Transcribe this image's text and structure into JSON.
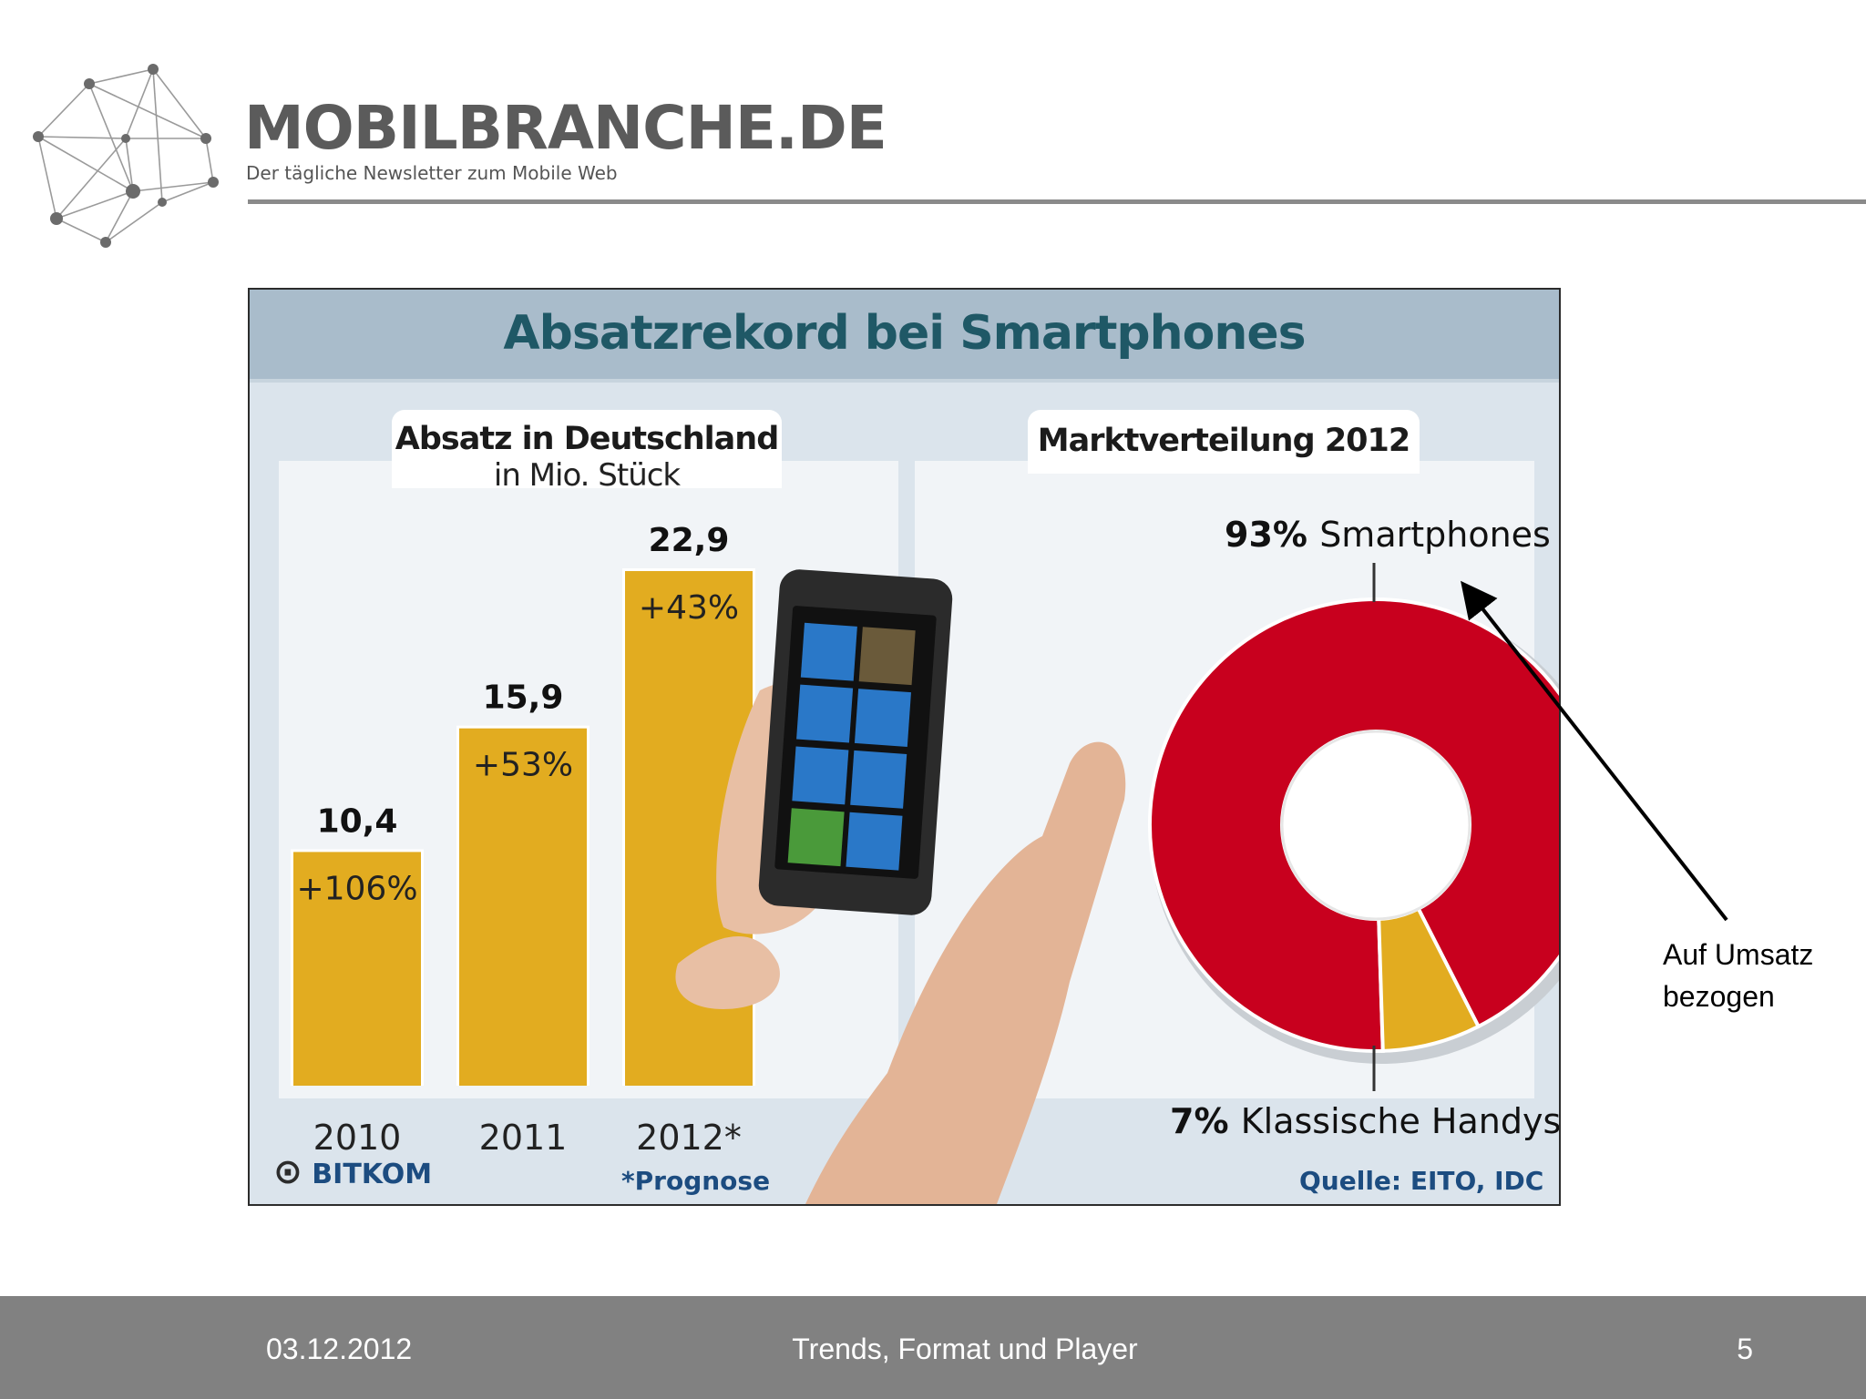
{
  "header": {
    "brand": "MOBILBRANCHE.DE",
    "tagline": "Der tägliche Newsletter zum Mobile Web",
    "logo_icon": "network-graph-icon"
  },
  "chart_data": [
    {
      "type": "bar",
      "title": "Absatzrekord bei Smartphones",
      "panel_title": "Absatz in Deutschland",
      "panel_subtitle": "in Mio. Stück",
      "categories": [
        "2010",
        "2011",
        "2012*"
      ],
      "values": [
        10.4,
        15.9,
        22.9
      ],
      "value_labels": [
        "10,4",
        "15,9",
        "22,9"
      ],
      "change_labels": [
        "+106%",
        "+53%",
        "+43%"
      ],
      "ylim": [
        0,
        24
      ],
      "bar_color": "#e2ac20",
      "footnote": "*Prognose"
    },
    {
      "type": "pie",
      "panel_title": "Marktverteilung 2012",
      "slices": [
        {
          "pct_label": "93%",
          "label": "Smartphones",
          "value": 93,
          "color": "#c8001e"
        },
        {
          "pct_label": "7%",
          "label": "Klassische Handys",
          "value": 7,
          "color": "#e2ac20"
        }
      ],
      "donut": true
    }
  ],
  "chart_footer": {
    "publisher": "BITKOM",
    "source": "Quelle: EITO, IDC"
  },
  "annotation": {
    "text_line1": "Auf Umsatz",
    "text_line2": "bezogen"
  },
  "footer": {
    "date": "03.12.2012",
    "title": "Trends, Format und Player",
    "page": "5"
  },
  "colors": {
    "footer_bg": "#818181",
    "title_color": "#1f5866",
    "accent_blue": "#1c4c80"
  }
}
